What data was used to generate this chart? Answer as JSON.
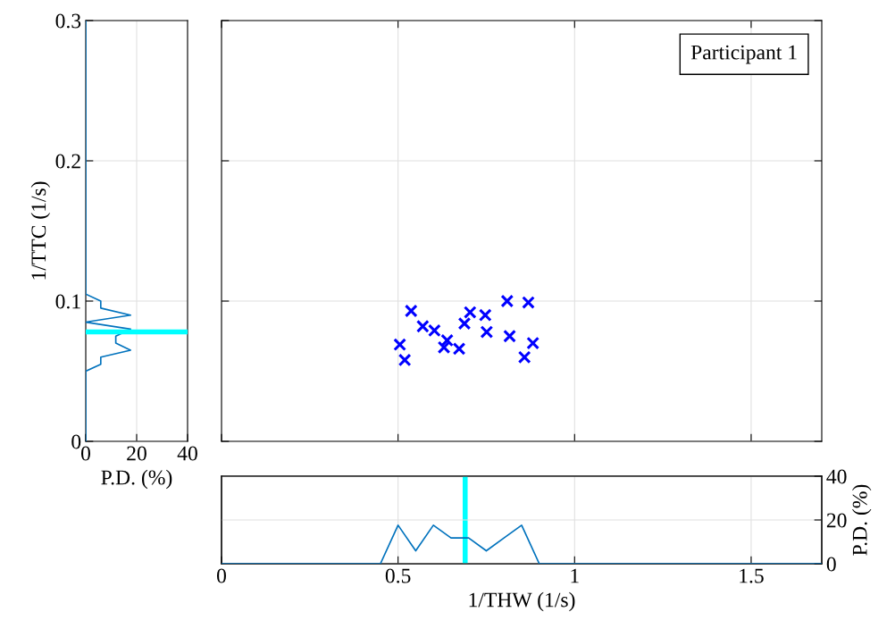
{
  "chart_data": [
    {
      "type": "scatter",
      "xlim": [
        0,
        1.7
      ],
      "ylim": [
        0,
        0.3
      ],
      "xticks": [
        0,
        0.5,
        1,
        1.5
      ],
      "yticks": [
        0,
        0.1,
        0.2,
        0.3
      ],
      "grid": true,
      "tick_labels": false,
      "marker": "cross",
      "annotations": [
        "Participant 1"
      ],
      "series": [
        {
          "color": "#0000ff",
          "x": [
            0.505,
            0.519,
            0.537,
            0.57,
            0.603,
            0.639,
            0.63,
            0.673,
            0.688,
            0.704,
            0.747,
            0.751,
            0.809,
            0.816,
            0.869,
            0.882,
            0.858
          ],
          "values": [
            0.069,
            0.058,
            0.093,
            0.082,
            0.079,
            0.072,
            0.067,
            0.066,
            0.084,
            0.092,
            0.09,
            0.078,
            0.1,
            0.075,
            0.099,
            0.07,
            0.06
          ]
        }
      ]
    },
    {
      "type": "line",
      "xlabel": "P.D. (%)",
      "ylabel": "1/TTC (1/s)",
      "xlim": [
        0,
        40
      ],
      "ylim": [
        0,
        0.3
      ],
      "xticks": [
        0,
        20,
        40
      ],
      "yticks": [
        0,
        0.1,
        0.2,
        0.3
      ],
      "grid": true,
      "series": [
        {
          "color": "#0072bd",
          "x": [
            0,
            0,
            0,
            5.9,
            5.9,
            17.6,
            0,
            17.6,
            11.8,
            11.8,
            17.6,
            5.9,
            5.9,
            0,
            0
          ],
          "values": [
            0.3,
            0.105,
            0.105,
            0.1,
            0.095,
            0.09,
            0.085,
            0.08,
            0.075,
            0.07,
            0.065,
            0.06,
            0.055,
            0.05,
            0
          ]
        }
      ],
      "ref_lines": [
        {
          "axis": "y",
          "value": 0.078,
          "color": "#00ffff"
        }
      ]
    },
    {
      "type": "line",
      "xlabel": "1/THW (1/s)",
      "y2label": "P.D. (%)",
      "xlim": [
        0,
        1.7
      ],
      "xticks": [
        0,
        0.5,
        1,
        1.5
      ],
      "y2lim": [
        0,
        40
      ],
      "y2ticks": [
        0,
        20,
        40
      ],
      "grid": true,
      "series": [
        {
          "color": "#0072bd",
          "axis": "y2",
          "x": [
            0,
            0.45,
            0.5,
            0.55,
            0.6,
            0.65,
            0.7,
            0.75,
            0.8,
            0.85,
            0.9,
            1.7
          ],
          "values": [
            0,
            0,
            17.6,
            5.9,
            17.6,
            11.8,
            11.8,
            5.9,
            11.8,
            17.6,
            0,
            0
          ]
        }
      ],
      "ref_lines": [
        {
          "axis": "x",
          "value": 0.69,
          "color": "#00ffff"
        }
      ]
    }
  ]
}
